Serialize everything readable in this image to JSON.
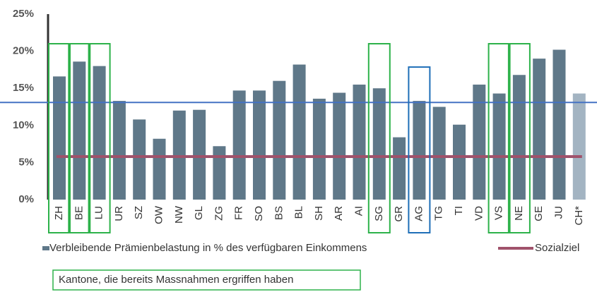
{
  "chart_data": {
    "type": "bar",
    "categories": [
      "ZH",
      "BE",
      "LU",
      "UR",
      "SZ",
      "OW",
      "NW",
      "GL",
      "ZG",
      "FR",
      "SO",
      "BS",
      "BL",
      "SH",
      "AR",
      "AI",
      "SG",
      "GR",
      "AG",
      "TG",
      "TI",
      "VD",
      "VS",
      "NE",
      "GE",
      "JU",
      "CH*"
    ],
    "series": [
      {
        "name": "Verbleibende Prämienbelastung in % des verfügbaren Einkommens",
        "color": "#5f7889",
        "values": [
          16.6,
          18.6,
          18.0,
          13.3,
          10.8,
          8.2,
          12.0,
          12.1,
          7.2,
          14.7,
          14.7,
          16.0,
          18.2,
          13.6,
          14.4,
          15.5,
          15.0,
          8.4,
          13.3,
          12.5,
          10.1,
          15.5,
          14.3,
          16.8,
          19.0,
          20.2,
          14.3
        ],
        "colors": [
          "#5f7889",
          "#5f7889",
          "#5f7889",
          "#5f7889",
          "#5f7889",
          "#5f7889",
          "#5f7889",
          "#5f7889",
          "#5f7889",
          "#5f7889",
          "#5f7889",
          "#5f7889",
          "#5f7889",
          "#5f7889",
          "#5f7889",
          "#5f7889",
          "#5f7889",
          "#5f7889",
          "#5f7889",
          "#5f7889",
          "#5f7889",
          "#5f7889",
          "#5f7889",
          "#5f7889",
          "#5f7889",
          "#5f7889",
          "#a3b4c2"
        ]
      }
    ],
    "target": {
      "name": "Sozialziel",
      "value": 5.8,
      "color": "#a0526b"
    },
    "reference_line": {
      "value": 13.1,
      "color": "#4472c4"
    },
    "highlights": [
      {
        "color": "#2db24a",
        "categories": [
          0,
          1,
          2,
          16,
          22,
          23
        ]
      },
      {
        "color": "#1f6fb8",
        "categories": [
          18
        ]
      }
    ],
    "highlight_note": "Kantone, die bereits Massnahmen ergriffen haben",
    "ylim": [
      0,
      25
    ],
    "yticks": [
      {
        "value": 0,
        "label": "0%"
      },
      {
        "value": 5,
        "label": "5%"
      },
      {
        "value": 10,
        "label": "10%"
      },
      {
        "value": 15,
        "label": "15%"
      },
      {
        "value": 20,
        "label": "20%"
      },
      {
        "value": 25,
        "label": "25%"
      }
    ],
    "grid": false
  }
}
